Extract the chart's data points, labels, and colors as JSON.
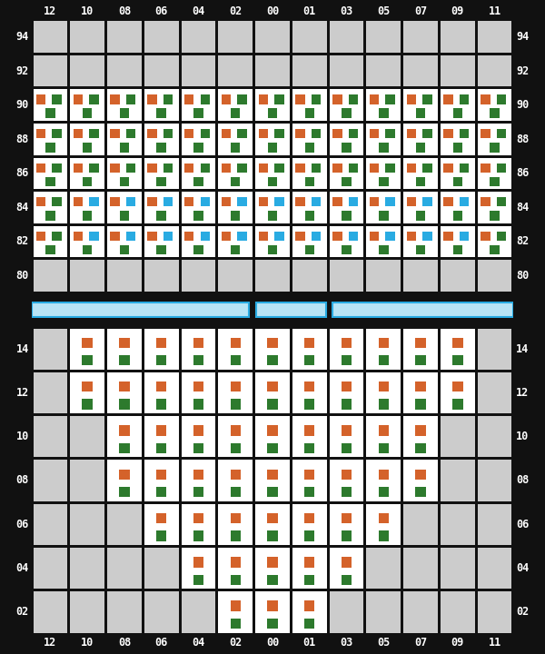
{
  "bg_color": "#111111",
  "cell_active": "#ffffff",
  "cell_inactive": "#cccccc",
  "orange": "#d4622a",
  "green": "#2d7a2d",
  "blue": "#29abe2",
  "sep_fill": "#b8e4f5",
  "sep_edge": "#29abe2",
  "col_vals": [
    12,
    10,
    8,
    6,
    4,
    2,
    0,
    1,
    3,
    5,
    7,
    9,
    11
  ],
  "col_labels": [
    "12",
    "10",
    "08",
    "06",
    "04",
    "02",
    "00",
    "01",
    "03",
    "05",
    "07",
    "09",
    "11"
  ],
  "top_rows": [
    94,
    92,
    90,
    88,
    86,
    84,
    82,
    80
  ],
  "bot_rows": [
    14,
    12,
    10,
    8,
    6,
    4,
    2
  ],
  "top_active": {
    "94": [],
    "92": [],
    "90": [
      12,
      10,
      8,
      6,
      4,
      2,
      0,
      1,
      3,
      5,
      7,
      9,
      11
    ],
    "88": [
      12,
      10,
      8,
      6,
      4,
      2,
      0,
      1,
      3,
      5,
      7,
      9,
      11
    ],
    "86": [
      12,
      10,
      8,
      6,
      4,
      2,
      0,
      1,
      3,
      5,
      7,
      9,
      11
    ],
    "84": [
      12,
      10,
      8,
      6,
      4,
      2,
      0,
      1,
      3,
      5,
      7,
      9,
      11
    ],
    "82": [
      12,
      10,
      8,
      6,
      4,
      2,
      0,
      1,
      3,
      5,
      7,
      9,
      11
    ],
    "80": []
  },
  "top_colors": {
    "90": {
      "o": [
        12,
        10,
        8,
        6,
        4,
        2,
        0,
        1,
        3,
        5,
        7,
        9,
        11
      ],
      "b": [],
      "g": [
        12,
        10,
        8,
        6,
        4,
        2,
        0,
        1,
        3,
        5,
        7,
        9,
        11
      ]
    },
    "88": {
      "o": [
        12,
        10,
        8,
        6,
        4,
        2,
        0,
        1,
        3,
        5,
        7,
        9,
        11
      ],
      "b": [],
      "g": [
        12,
        10,
        8,
        6,
        4,
        2,
        0,
        1,
        3,
        5,
        7,
        9,
        11
      ]
    },
    "86": {
      "o": [
        12,
        10,
        8,
        6,
        4,
        2,
        0,
        1,
        3,
        5,
        7,
        9,
        11
      ],
      "b": [],
      "g": [
        12,
        10,
        8,
        6,
        4,
        2,
        0,
        1,
        3,
        5,
        7,
        9,
        11
      ]
    },
    "84": {
      "o": [
        12,
        10,
        8,
        6,
        4,
        2,
        0,
        1,
        3,
        5,
        7,
        9,
        11
      ],
      "b": [
        10,
        8,
        6,
        4,
        2,
        0,
        1,
        3,
        5,
        7,
        9
      ],
      "g": [
        12,
        10,
        8,
        6,
        4,
        2,
        0,
        1,
        3,
        5,
        7,
        9,
        11
      ]
    },
    "82": {
      "o": [
        12,
        10,
        8,
        6,
        4,
        2,
        0,
        1,
        3,
        5,
        7,
        9,
        11
      ],
      "b": [
        10,
        8,
        6,
        4,
        2,
        0,
        1,
        3,
        5,
        7,
        9
      ],
      "g": [
        12,
        10,
        8,
        6,
        4,
        2,
        0,
        1,
        3,
        5,
        7,
        9,
        11
      ]
    }
  },
  "bot_active": {
    "14": [
      10,
      8,
      6,
      4,
      2,
      0,
      1,
      3,
      5,
      7,
      9
    ],
    "12": [
      10,
      8,
      6,
      4,
      2,
      0,
      1,
      3,
      5,
      7,
      9
    ],
    "10": [
      8,
      6,
      4,
      2,
      0,
      1,
      3,
      5,
      7
    ],
    "8": [
      8,
      6,
      4,
      2,
      0,
      1,
      3,
      5,
      7
    ],
    "6": [
      6,
      4,
      2,
      0,
      1,
      3,
      5
    ],
    "4": [
      4,
      2,
      0,
      1,
      3
    ],
    "2": [
      2,
      0,
      1
    ]
  }
}
